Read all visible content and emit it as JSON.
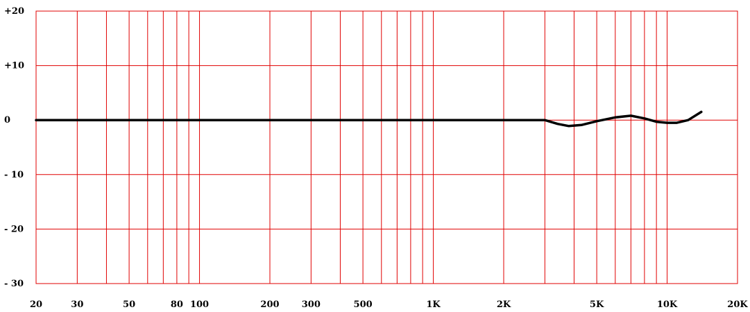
{
  "chart_data": {
    "type": "line",
    "x_scale": "log",
    "xlim": [
      20,
      20000
    ],
    "ylim": [
      -30,
      20
    ],
    "grid": true,
    "grid_color": "#e00000",
    "line_color": "#000000",
    "y_ticks": [
      {
        "value": 20,
        "label": "+20"
      },
      {
        "value": 10,
        "label": "+10"
      },
      {
        "value": 0,
        "label": "0"
      },
      {
        "value": -10,
        "label": "- 10"
      },
      {
        "value": -20,
        "label": "- 20"
      },
      {
        "value": -30,
        "label": "- 30"
      }
    ],
    "x_ticks": [
      {
        "value": 20,
        "label": "20"
      },
      {
        "value": 30,
        "label": "30"
      },
      {
        "value": 50,
        "label": "50"
      },
      {
        "value": 80,
        "label": "80"
      },
      {
        "value": 100,
        "label": "100"
      },
      {
        "value": 200,
        "label": "200"
      },
      {
        "value": 300,
        "label": "300"
      },
      {
        "value": 500,
        "label": "500"
      },
      {
        "value": 1000,
        "label": "1K"
      },
      {
        "value": 2000,
        "label": "2K"
      },
      {
        "value": 5000,
        "label": "5K"
      },
      {
        "value": 10000,
        "label": "10K"
      },
      {
        "value": 20000,
        "label": "20K"
      }
    ],
    "x_gridlines": [
      20,
      30,
      40,
      50,
      60,
      70,
      80,
      90,
      100,
      200,
      300,
      400,
      500,
      600,
      700,
      800,
      900,
      1000,
      2000,
      3000,
      4000,
      5000,
      6000,
      7000,
      8000,
      9000,
      10000,
      20000
    ],
    "series": [
      {
        "x": [
          20,
          3000,
          3400,
          3800,
          4300,
          5000,
          6000,
          7000,
          8000,
          9000,
          10000,
          11000,
          12300,
          14000
        ],
        "y": [
          0,
          0,
          -0.7,
          -1.1,
          -0.9,
          -0.2,
          0.5,
          0.8,
          0.3,
          -0.3,
          -0.5,
          -0.5,
          0,
          1.5
        ]
      }
    ]
  }
}
